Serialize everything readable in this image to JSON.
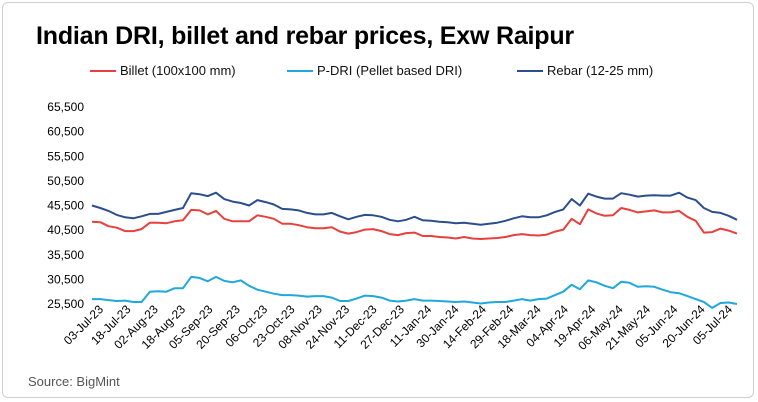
{
  "chart_data": {
    "type": "line",
    "title": "Indian DRI, billet and rebar prices, Exw Raipur",
    "xlabel": "",
    "ylabel": "",
    "ylim": [
      25500,
      65500
    ],
    "yticks": [
      25500,
      30500,
      35500,
      40500,
      45500,
      50500,
      55500,
      60500,
      65500
    ],
    "ytick_labels": [
      "25,500",
      "30,500",
      "35,500",
      "40,500",
      "45,500",
      "50,500",
      "55,500",
      "60,500",
      "65,500"
    ],
    "x_tick_labels": [
      "03-Jul-23",
      "18-Jul-23",
      "02-Aug-23",
      "18-Aug-23",
      "05-Sep-23",
      "20-Sep-23",
      "06-Oct-23",
      "23-Oct-23",
      "08-Nov-23",
      "24-Nov-23",
      "11-Dec-23",
      "27-Dec-23",
      "11-Jan-24",
      "30-Jan-24",
      "14-Feb-24",
      "29-Feb-24",
      "18-Mar-24",
      "04-Apr-24",
      "19-Apr-24",
      "06-May-24",
      "21-May-24",
      "05-Jun-24",
      "20-Jun-24",
      "05-Jul-24"
    ],
    "grid": false,
    "legend_position": "top",
    "series": [
      {
        "name": "Billet (100x100 mm)",
        "color": "#e8403c",
        "values": [
          42200,
          42100,
          41300,
          41000,
          40300,
          40300,
          40700,
          42000,
          42000,
          41900,
          42300,
          42500,
          44600,
          44500,
          43700,
          44400,
          42800,
          42300,
          42300,
          42300,
          43500,
          43200,
          42800,
          41800,
          41800,
          41500,
          41100,
          40900,
          40900,
          41100,
          40200,
          39800,
          40100,
          40600,
          40700,
          40300,
          39700,
          39500,
          39900,
          40000,
          39300,
          39300,
          39100,
          39000,
          38800,
          39100,
          38800,
          38700,
          38800,
          38900,
          39100,
          39500,
          39700,
          39500,
          39400,
          39600,
          40200,
          40600,
          42800,
          41700,
          44700,
          43900,
          43400,
          43500,
          45000,
          44600,
          44100,
          44300,
          44500,
          44100,
          44100,
          44400,
          43200,
          42400,
          40000,
          40100,
          40800,
          40400,
          39800
        ]
      },
      {
        "name": "P-DRI (Pellet based DRI)",
        "color": "#20a8dd",
        "values": [
          26500,
          26500,
          26300,
          26100,
          26200,
          25900,
          25900,
          28000,
          28100,
          28000,
          28700,
          28700,
          31000,
          30800,
          30100,
          31000,
          30200,
          29900,
          30300,
          29200,
          28400,
          28000,
          27600,
          27300,
          27300,
          27200,
          27000,
          27100,
          27100,
          26800,
          26100,
          26100,
          26600,
          27200,
          27100,
          26800,
          26200,
          26000,
          26200,
          26500,
          26200,
          26200,
          26100,
          26000,
          25900,
          26000,
          25800,
          25600,
          25800,
          25900,
          25900,
          26200,
          26500,
          26200,
          26500,
          26600,
          27300,
          28000,
          29400,
          28500,
          30300,
          29900,
          29200,
          28700,
          30000,
          29800,
          29000,
          29100,
          29000,
          28400,
          27900,
          27700,
          27100,
          26500,
          25900,
          24700,
          25700,
          25800,
          25500
        ]
      },
      {
        "name": "Rebar (12-25 mm)",
        "color": "#2b4f8c",
        "values": [
          45500,
          45000,
          44400,
          43600,
          43100,
          42900,
          43300,
          43800,
          43800,
          44200,
          44600,
          45000,
          48000,
          47800,
          47400,
          48100,
          46800,
          46300,
          46000,
          45500,
          46600,
          46200,
          45700,
          44800,
          44700,
          44500,
          44000,
          43700,
          43700,
          44000,
          43300,
          42700,
          43200,
          43600,
          43500,
          43200,
          42600,
          42300,
          42600,
          43200,
          42500,
          42400,
          42200,
          42100,
          41900,
          42000,
          41800,
          41600,
          41800,
          42000,
          42400,
          42900,
          43300,
          43100,
          43100,
          43500,
          44200,
          44700,
          46800,
          45500,
          47900,
          47300,
          46900,
          46900,
          48000,
          47700,
          47300,
          47500,
          47600,
          47500,
          47500,
          48100,
          47100,
          46600,
          45000,
          44200,
          44000,
          43400,
          42600
        ]
      }
    ]
  },
  "source": "Source: BigMint"
}
